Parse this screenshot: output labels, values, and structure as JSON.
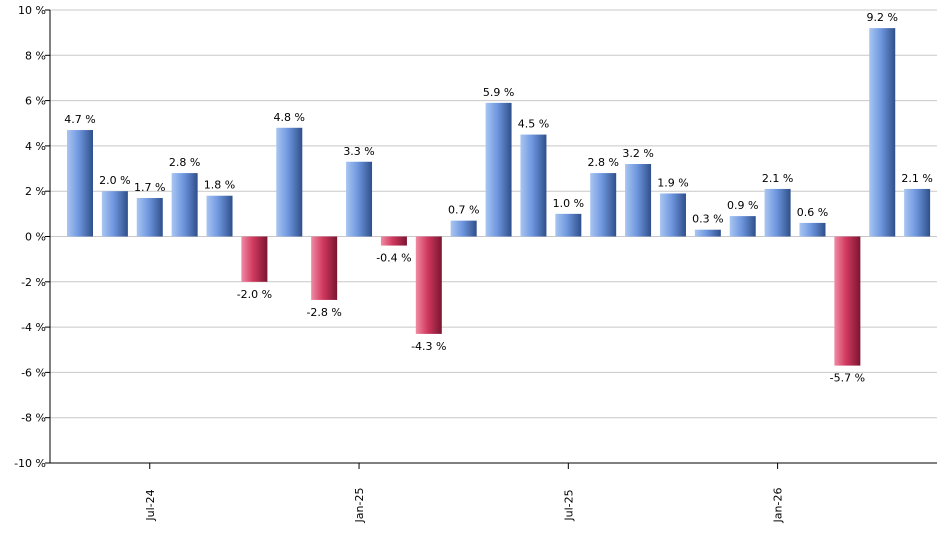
{
  "chart_data": {
    "type": "bar",
    "values": [
      4.7,
      2.0,
      1.7,
      2.8,
      1.8,
      -2.0,
      4.8,
      -2.8,
      3.3,
      -0.4,
      -4.3,
      0.7,
      5.9,
      4.5,
      1.0,
      2.8,
      3.2,
      1.9,
      0.3,
      0.9,
      2.1,
      0.6,
      -5.7,
      9.2,
      2.1
    ],
    "data_labels": [
      "4.7 %",
      "2.0 %",
      "1.7 %",
      "2.8 %",
      "1.8 %",
      "-2.0 %",
      "4.8 %",
      "-2.8 %",
      "3.3 %",
      "-0.4 %",
      "-4.3 %",
      "0.7 %",
      "5.9 %",
      "4.5 %",
      "1.0 %",
      "2.8 %",
      "3.2 %",
      "1.9 %",
      "0.3 %",
      "0.9 %",
      "2.1 %",
      "0.6 %",
      "-5.7 %",
      "9.2 %",
      "2.1 %"
    ],
    "x_ticks": [
      {
        "label": "Jul-24",
        "index": 2
      },
      {
        "label": "Jan-25",
        "index": 8
      },
      {
        "label": "Jul-25",
        "index": 14
      },
      {
        "label": "Jan-26",
        "index": 20
      }
    ],
    "y_ticks": [
      {
        "value": 10,
        "label": "10 %"
      },
      {
        "value": 8,
        "label": "8 %"
      },
      {
        "value": 6,
        "label": "6 %"
      },
      {
        "value": 4,
        "label": "4 %"
      },
      {
        "value": 2,
        "label": "2 %"
      },
      {
        "value": 0,
        "label": "0 %"
      },
      {
        "value": -2,
        "label": "-2 %"
      },
      {
        "value": -4,
        "label": "-4 %"
      },
      {
        "value": -6,
        "label": "-6 %"
      },
      {
        "value": -8,
        "label": "-8 %"
      },
      {
        "value": -10,
        "label": "-10 %"
      }
    ],
    "ylim": [
      -10,
      10
    ],
    "grid": true,
    "title": "",
    "xlabel": "",
    "ylabel": "",
    "colors": {
      "positive_light": "#a9c6f2",
      "positive_mid": "#6f97df",
      "positive_dark": "#2f4f8a",
      "negative_light": "#f08ba3",
      "negative_mid": "#d1395f",
      "negative_dark": "#7a1530"
    }
  }
}
